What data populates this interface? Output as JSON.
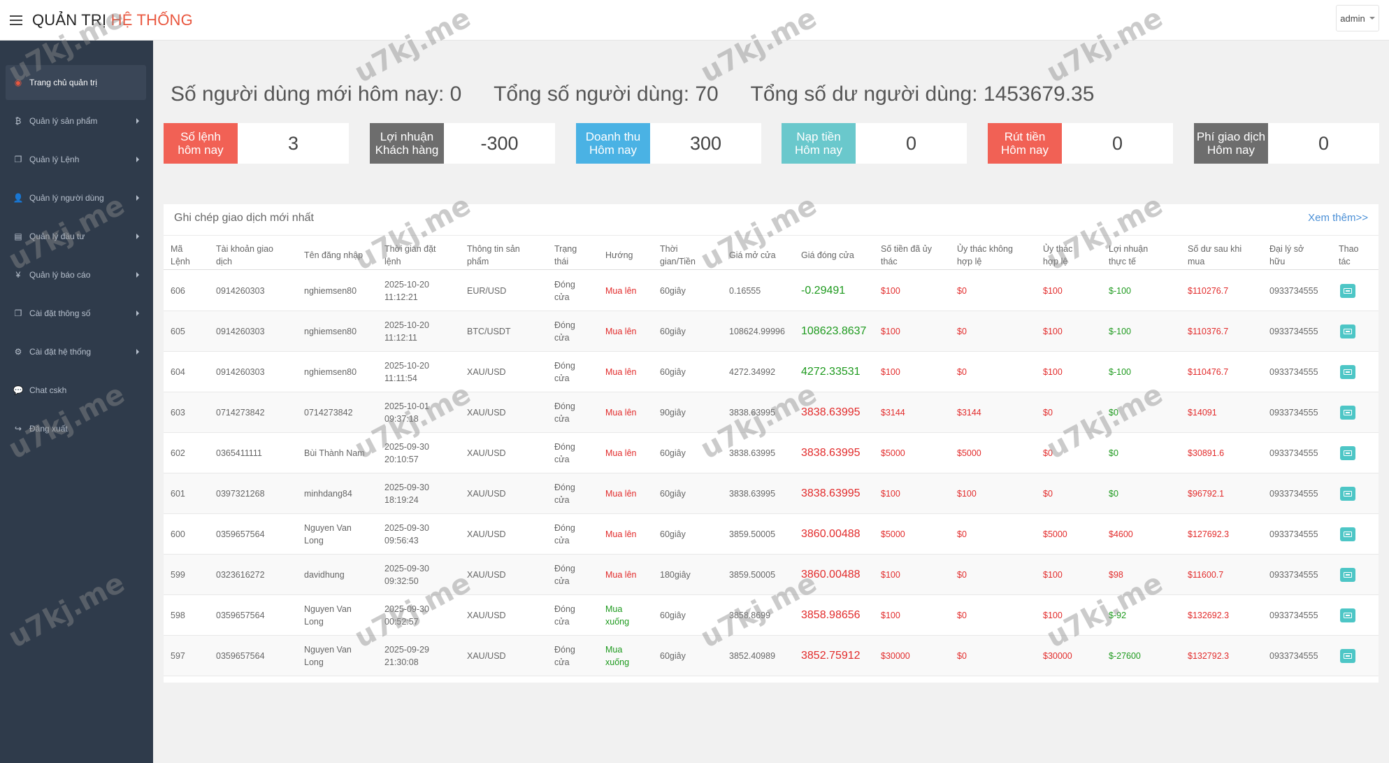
{
  "header": {
    "title_part1": "QUẢN TRỊ",
    "title_part2": "HỆ THỐNG",
    "user_label": "admin"
  },
  "sidebar": {
    "items": [
      {
        "label": "Trang chủ quản trị",
        "icon": "dashboard-icon",
        "glyph": "◉"
      },
      {
        "label": "Quản lý sản phẩm",
        "icon": "bitcoin-icon",
        "glyph": "₿"
      },
      {
        "label": "Quản lý Lệnh",
        "icon": "copy-icon",
        "glyph": "❐"
      },
      {
        "label": "Quản lý người dùng",
        "icon": "user-icon",
        "glyph": "👤"
      },
      {
        "label": "Quản lý đầu tư",
        "icon": "money-icon",
        "glyph": "▤"
      },
      {
        "label": "Quản lý báo cáo",
        "icon": "yen-icon",
        "glyph": "¥"
      },
      {
        "label": "Cài đặt thông số",
        "icon": "copy-icon",
        "glyph": "❐"
      },
      {
        "label": "Cài đặt hệ thống",
        "icon": "gears-icon",
        "glyph": "⚙"
      },
      {
        "label": "Chat cskh",
        "icon": "chat-icon",
        "glyph": "💬"
      },
      {
        "label": "Đăng xuất",
        "icon": "sign-out-icon",
        "glyph": "↪"
      }
    ]
  },
  "headline": {
    "new_users": "Số người dùng mới hôm nay:  0",
    "total_users": "Tổng số người dùng: 70",
    "total_balance": "Tổng số dư người dùng: 1453679.35"
  },
  "cards": [
    {
      "label1": "Số lệnh",
      "label2": "hôm nay",
      "value": "3",
      "color": "#f16155"
    },
    {
      "label1": "Lợi nhuận",
      "label2": "Khách hàng",
      "value": "-300",
      "color": "#6d6d6d"
    },
    {
      "label1": "Doanh thu",
      "label2": "Hôm nay",
      "value": "300",
      "color": "#4ab2e4"
    },
    {
      "label1": "Nạp tiền",
      "label2": "Hôm nay",
      "value": "0",
      "color": "#6ac8cc"
    },
    {
      "label1": "Rút tiền",
      "label2": "Hôm nay",
      "value": "0",
      "color": "#f16155"
    },
    {
      "label1": "Phí giao dịch",
      "label2": "Hôm nay",
      "value": "0",
      "color": "#6d6d6d"
    }
  ],
  "panel": {
    "title": "Ghi chép giao dịch mới nhất",
    "more": "Xem thêm>>"
  },
  "table": {
    "headers": [
      [
        "Mã",
        "Lệnh"
      ],
      [
        "Tài khoản giao",
        "dịch"
      ],
      [
        "Tên đăng nhập"
      ],
      [
        "Thời gian đặt",
        "lệnh"
      ],
      [
        "Thông tin sản",
        "phẩm"
      ],
      [
        "Trạng",
        "thái"
      ],
      [
        "Hướng"
      ],
      [
        "Thời",
        "gian/Tiền"
      ],
      [
        "Giá mở cửa"
      ],
      [
        "Giá đóng cửa"
      ],
      [
        "Số tiền đã ủy",
        "thác"
      ],
      [
        "Ủy thác không",
        "hợp lệ"
      ],
      [
        "Ủy thác",
        "hợp lệ"
      ],
      [
        "Lợi nhuận",
        "thực tế"
      ],
      [
        "Số dư sau khi",
        "mua"
      ],
      [
        "Đại lý sở",
        "hữu"
      ],
      [
        "Thao",
        "tác"
      ]
    ],
    "rows": [
      {
        "id": "606",
        "account": "0914260303",
        "username": [
          "nghiemsen80"
        ],
        "time": [
          "2025-10-20",
          "11:12:21"
        ],
        "product": "EUR/USD",
        "status": [
          "Đóng",
          "cửa"
        ],
        "direction": [
          "Mua lên"
        ],
        "dir_color": "red",
        "duration": "60giây",
        "open": "0.16555",
        "close": "-0.29491",
        "close_color": "green",
        "amount": "$100",
        "invalid": "$0",
        "valid": "$100",
        "profit": "$-100",
        "profit_color": "green",
        "balance": "$110276.7",
        "agent": "0933734555"
      },
      {
        "id": "605",
        "account": "0914260303",
        "username": [
          "nghiemsen80"
        ],
        "time": [
          "2025-10-20",
          "11:12:11"
        ],
        "product": "BTC/USDT",
        "status": [
          "Đóng",
          "cửa"
        ],
        "direction": [
          "Mua lên"
        ],
        "dir_color": "red",
        "duration": "60giây",
        "open": "108624.99996",
        "close": "108623.8637",
        "close_color": "green",
        "amount": "$100",
        "invalid": "$0",
        "valid": "$100",
        "profit": "$-100",
        "profit_color": "green",
        "balance": "$110376.7",
        "agent": "0933734555"
      },
      {
        "id": "604",
        "account": "0914260303",
        "username": [
          "nghiemsen80"
        ],
        "time": [
          "2025-10-20",
          "11:11:54"
        ],
        "product": "XAU/USD",
        "status": [
          "Đóng",
          "cửa"
        ],
        "direction": [
          "Mua lên"
        ],
        "dir_color": "red",
        "duration": "60giây",
        "open": "4272.34992",
        "close": "4272.33531",
        "close_color": "green",
        "amount": "$100",
        "invalid": "$0",
        "valid": "$100",
        "profit": "$-100",
        "profit_color": "green",
        "balance": "$110476.7",
        "agent": "0933734555"
      },
      {
        "id": "603",
        "account": "0714273842",
        "username": [
          "0714273842"
        ],
        "time": [
          "2025-10-01",
          "09:37:18"
        ],
        "product": "XAU/USD",
        "status": [
          "Đóng",
          "cửa"
        ],
        "direction": [
          "Mua lên"
        ],
        "dir_color": "red",
        "duration": "90giây",
        "open": "3838.63995",
        "close": "3838.63995",
        "close_color": "red",
        "amount": "$3144",
        "invalid": "$3144",
        "valid": "$0",
        "profit": "$0",
        "profit_color": "green",
        "balance": "$14091",
        "agent": "0933734555"
      },
      {
        "id": "602",
        "account": "0365411111",
        "username": [
          "Bùi Thành Nam"
        ],
        "time": [
          "2025-09-30",
          "20:10:57"
        ],
        "product": "XAU/USD",
        "status": [
          "Đóng",
          "cửa"
        ],
        "direction": [
          "Mua lên"
        ],
        "dir_color": "red",
        "duration": "60giây",
        "open": "3838.63995",
        "close": "3838.63995",
        "close_color": "red",
        "amount": "$5000",
        "invalid": "$5000",
        "valid": "$0",
        "profit": "$0",
        "profit_color": "green",
        "balance": "$30891.6",
        "agent": "0933734555"
      },
      {
        "id": "601",
        "account": "0397321268",
        "username": [
          "minhdang84"
        ],
        "time": [
          "2025-09-30",
          "18:19:24"
        ],
        "product": "XAU/USD",
        "status": [
          "Đóng",
          "cửa"
        ],
        "direction": [
          "Mua lên"
        ],
        "dir_color": "red",
        "duration": "60giây",
        "open": "3838.63995",
        "close": "3838.63995",
        "close_color": "red",
        "amount": "$100",
        "invalid": "$100",
        "valid": "$0",
        "profit": "$0",
        "profit_color": "green",
        "balance": "$96792.1",
        "agent": "0933734555"
      },
      {
        "id": "600",
        "account": "0359657564",
        "username": [
          "Nguyen Van",
          "Long"
        ],
        "time": [
          "2025-09-30",
          "09:56:43"
        ],
        "product": "XAU/USD",
        "status": [
          "Đóng",
          "cửa"
        ],
        "direction": [
          "Mua lên"
        ],
        "dir_color": "red",
        "duration": "60giây",
        "open": "3859.50005",
        "close": "3860.00488",
        "close_color": "red",
        "amount": "$5000",
        "invalid": "$0",
        "valid": "$5000",
        "profit": "$4600",
        "profit_color": "red",
        "balance": "$127692.3",
        "agent": "0933734555"
      },
      {
        "id": "599",
        "account": "0323616272",
        "username": [
          "davidhung"
        ],
        "time": [
          "2025-09-30",
          "09:32:50"
        ],
        "product": "XAU/USD",
        "status": [
          "Đóng",
          "cửa"
        ],
        "direction": [
          "Mua lên"
        ],
        "dir_color": "red",
        "duration": "180giây",
        "open": "3859.50005",
        "close": "3860.00488",
        "close_color": "red",
        "amount": "$100",
        "invalid": "$0",
        "valid": "$100",
        "profit": "$98",
        "profit_color": "red",
        "balance": "$11600.7",
        "agent": "0933734555"
      },
      {
        "id": "598",
        "account": "0359657564",
        "username": [
          "Nguyen Van",
          "Long"
        ],
        "time": [
          "2025-09-30",
          "00:52:57"
        ],
        "product": "XAU/USD",
        "status": [
          "Đóng",
          "cửa"
        ],
        "direction": [
          "Mua",
          "xuống"
        ],
        "dir_color": "green",
        "duration": "60giây",
        "open": "3858.8699",
        "close": "3858.98656",
        "close_color": "red",
        "amount": "$100",
        "invalid": "$0",
        "valid": "$100",
        "profit": "$-92",
        "profit_color": "green",
        "balance": "$132692.3",
        "agent": "0933734555"
      },
      {
        "id": "597",
        "account": "0359657564",
        "username": [
          "Nguyen Van",
          "Long"
        ],
        "time": [
          "2025-09-29",
          "21:30:08"
        ],
        "product": "XAU/USD",
        "status": [
          "Đóng",
          "cửa"
        ],
        "direction": [
          "Mua",
          "xuống"
        ],
        "dir_color": "green",
        "duration": "60giây",
        "open": "3852.40989",
        "close": "3852.75912",
        "close_color": "red",
        "amount": "$30000",
        "invalid": "$0",
        "valid": "$30000",
        "profit": "$-27600",
        "profit_color": "green",
        "balance": "$132792.3",
        "agent": "0933734555"
      }
    ]
  },
  "watermark": "u7kj.me"
}
